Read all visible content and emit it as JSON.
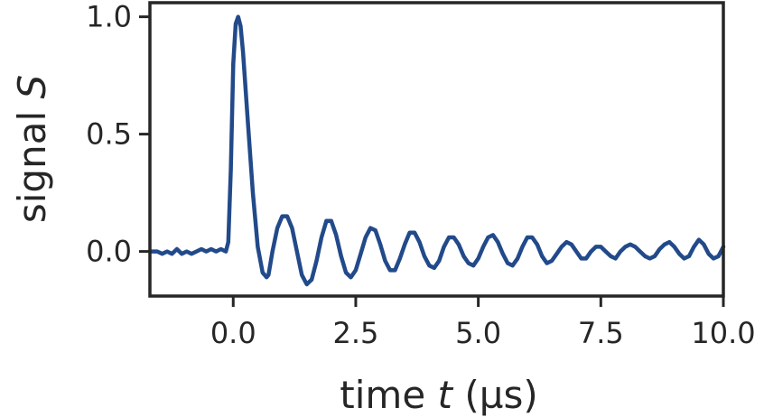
{
  "chart_data": {
    "type": "line",
    "xlabel_parts": {
      "pre": "time ",
      "var": "t",
      "post": " (µs)"
    },
    "ylabel_parts": {
      "pre": "signal ",
      "var": "S"
    },
    "xlim": [
      -1.7,
      10.0
    ],
    "ylim": [
      -0.19,
      1.06
    ],
    "x_ticks": [
      0.0,
      2.5,
      5.0,
      7.5,
      10.0
    ],
    "x_tick_labels": [
      "0.0",
      "2.5",
      "5.0",
      "7.5",
      "10.0"
    ],
    "y_ticks": [
      0.0,
      0.5,
      1.0
    ],
    "y_tick_labels": [
      "0.0",
      "0.5",
      "1.0"
    ],
    "grid": false,
    "line_color": "#224a8a",
    "series": [
      {
        "x": [
          -1.7,
          -1.55,
          -1.45,
          -1.35,
          -1.25,
          -1.15,
          -1.05,
          -0.95,
          -0.85,
          -0.75,
          -0.65,
          -0.55,
          -0.45,
          -0.35,
          -0.25,
          -0.15,
          -0.1,
          -0.05,
          0.0,
          0.05,
          0.1,
          0.15,
          0.2,
          0.3,
          0.4,
          0.5,
          0.6,
          0.68,
          0.72,
          0.8,
          0.9,
          1.0,
          1.1,
          1.2,
          1.3,
          1.4,
          1.5,
          1.6,
          1.7,
          1.8,
          1.9,
          2.0,
          2.1,
          2.2,
          2.3,
          2.4,
          2.5,
          2.6,
          2.7,
          2.8,
          2.9,
          3.0,
          3.1,
          3.2,
          3.3,
          3.4,
          3.5,
          3.6,
          3.7,
          3.8,
          3.9,
          4.0,
          4.1,
          4.2,
          4.3,
          4.4,
          4.5,
          4.6,
          4.7,
          4.8,
          4.9,
          5.0,
          5.1,
          5.2,
          5.3,
          5.4,
          5.5,
          5.6,
          5.7,
          5.8,
          5.9,
          6.0,
          6.1,
          6.2,
          6.3,
          6.4,
          6.5,
          6.6,
          6.7,
          6.8,
          6.9,
          7.0,
          7.1,
          7.2,
          7.3,
          7.4,
          7.5,
          7.6,
          7.7,
          7.8,
          7.9,
          8.0,
          8.1,
          8.2,
          8.3,
          8.4,
          8.5,
          8.6,
          8.7,
          8.8,
          8.9,
          9.0,
          9.1,
          9.2,
          9.3,
          9.4,
          9.5,
          9.6,
          9.7,
          9.8,
          9.9,
          10.0
        ],
        "y": [
          0.0,
          0.0,
          -0.01,
          0.0,
          -0.01,
          0.01,
          -0.01,
          0.0,
          -0.01,
          0.0,
          0.01,
          0.0,
          0.01,
          0.0,
          0.01,
          0.0,
          0.04,
          0.35,
          0.8,
          0.97,
          1.0,
          0.96,
          0.85,
          0.55,
          0.25,
          0.02,
          -0.09,
          -0.11,
          -0.1,
          0.0,
          0.1,
          0.15,
          0.15,
          0.1,
          0.0,
          -0.1,
          -0.14,
          -0.12,
          -0.04,
          0.06,
          0.13,
          0.13,
          0.07,
          -0.02,
          -0.09,
          -0.11,
          -0.08,
          -0.01,
          0.06,
          0.1,
          0.09,
          0.03,
          -0.04,
          -0.08,
          -0.08,
          -0.03,
          0.03,
          0.08,
          0.08,
          0.04,
          -0.02,
          -0.06,
          -0.07,
          -0.04,
          0.02,
          0.06,
          0.06,
          0.03,
          -0.02,
          -0.05,
          -0.06,
          -0.03,
          0.02,
          0.06,
          0.07,
          0.04,
          -0.01,
          -0.05,
          -0.06,
          -0.03,
          0.02,
          0.06,
          0.06,
          0.03,
          -0.02,
          -0.05,
          -0.04,
          -0.01,
          0.02,
          0.04,
          0.03,
          0.0,
          -0.03,
          -0.03,
          0.0,
          0.02,
          0.02,
          0.0,
          -0.02,
          -0.03,
          0.0,
          0.02,
          0.03,
          0.02,
          0.0,
          -0.02,
          -0.03,
          -0.02,
          0.01,
          0.03,
          0.04,
          0.02,
          -0.01,
          -0.03,
          -0.02,
          0.02,
          0.05,
          0.03,
          -0.01,
          -0.03,
          -0.02,
          0.02
        ]
      }
    ]
  }
}
